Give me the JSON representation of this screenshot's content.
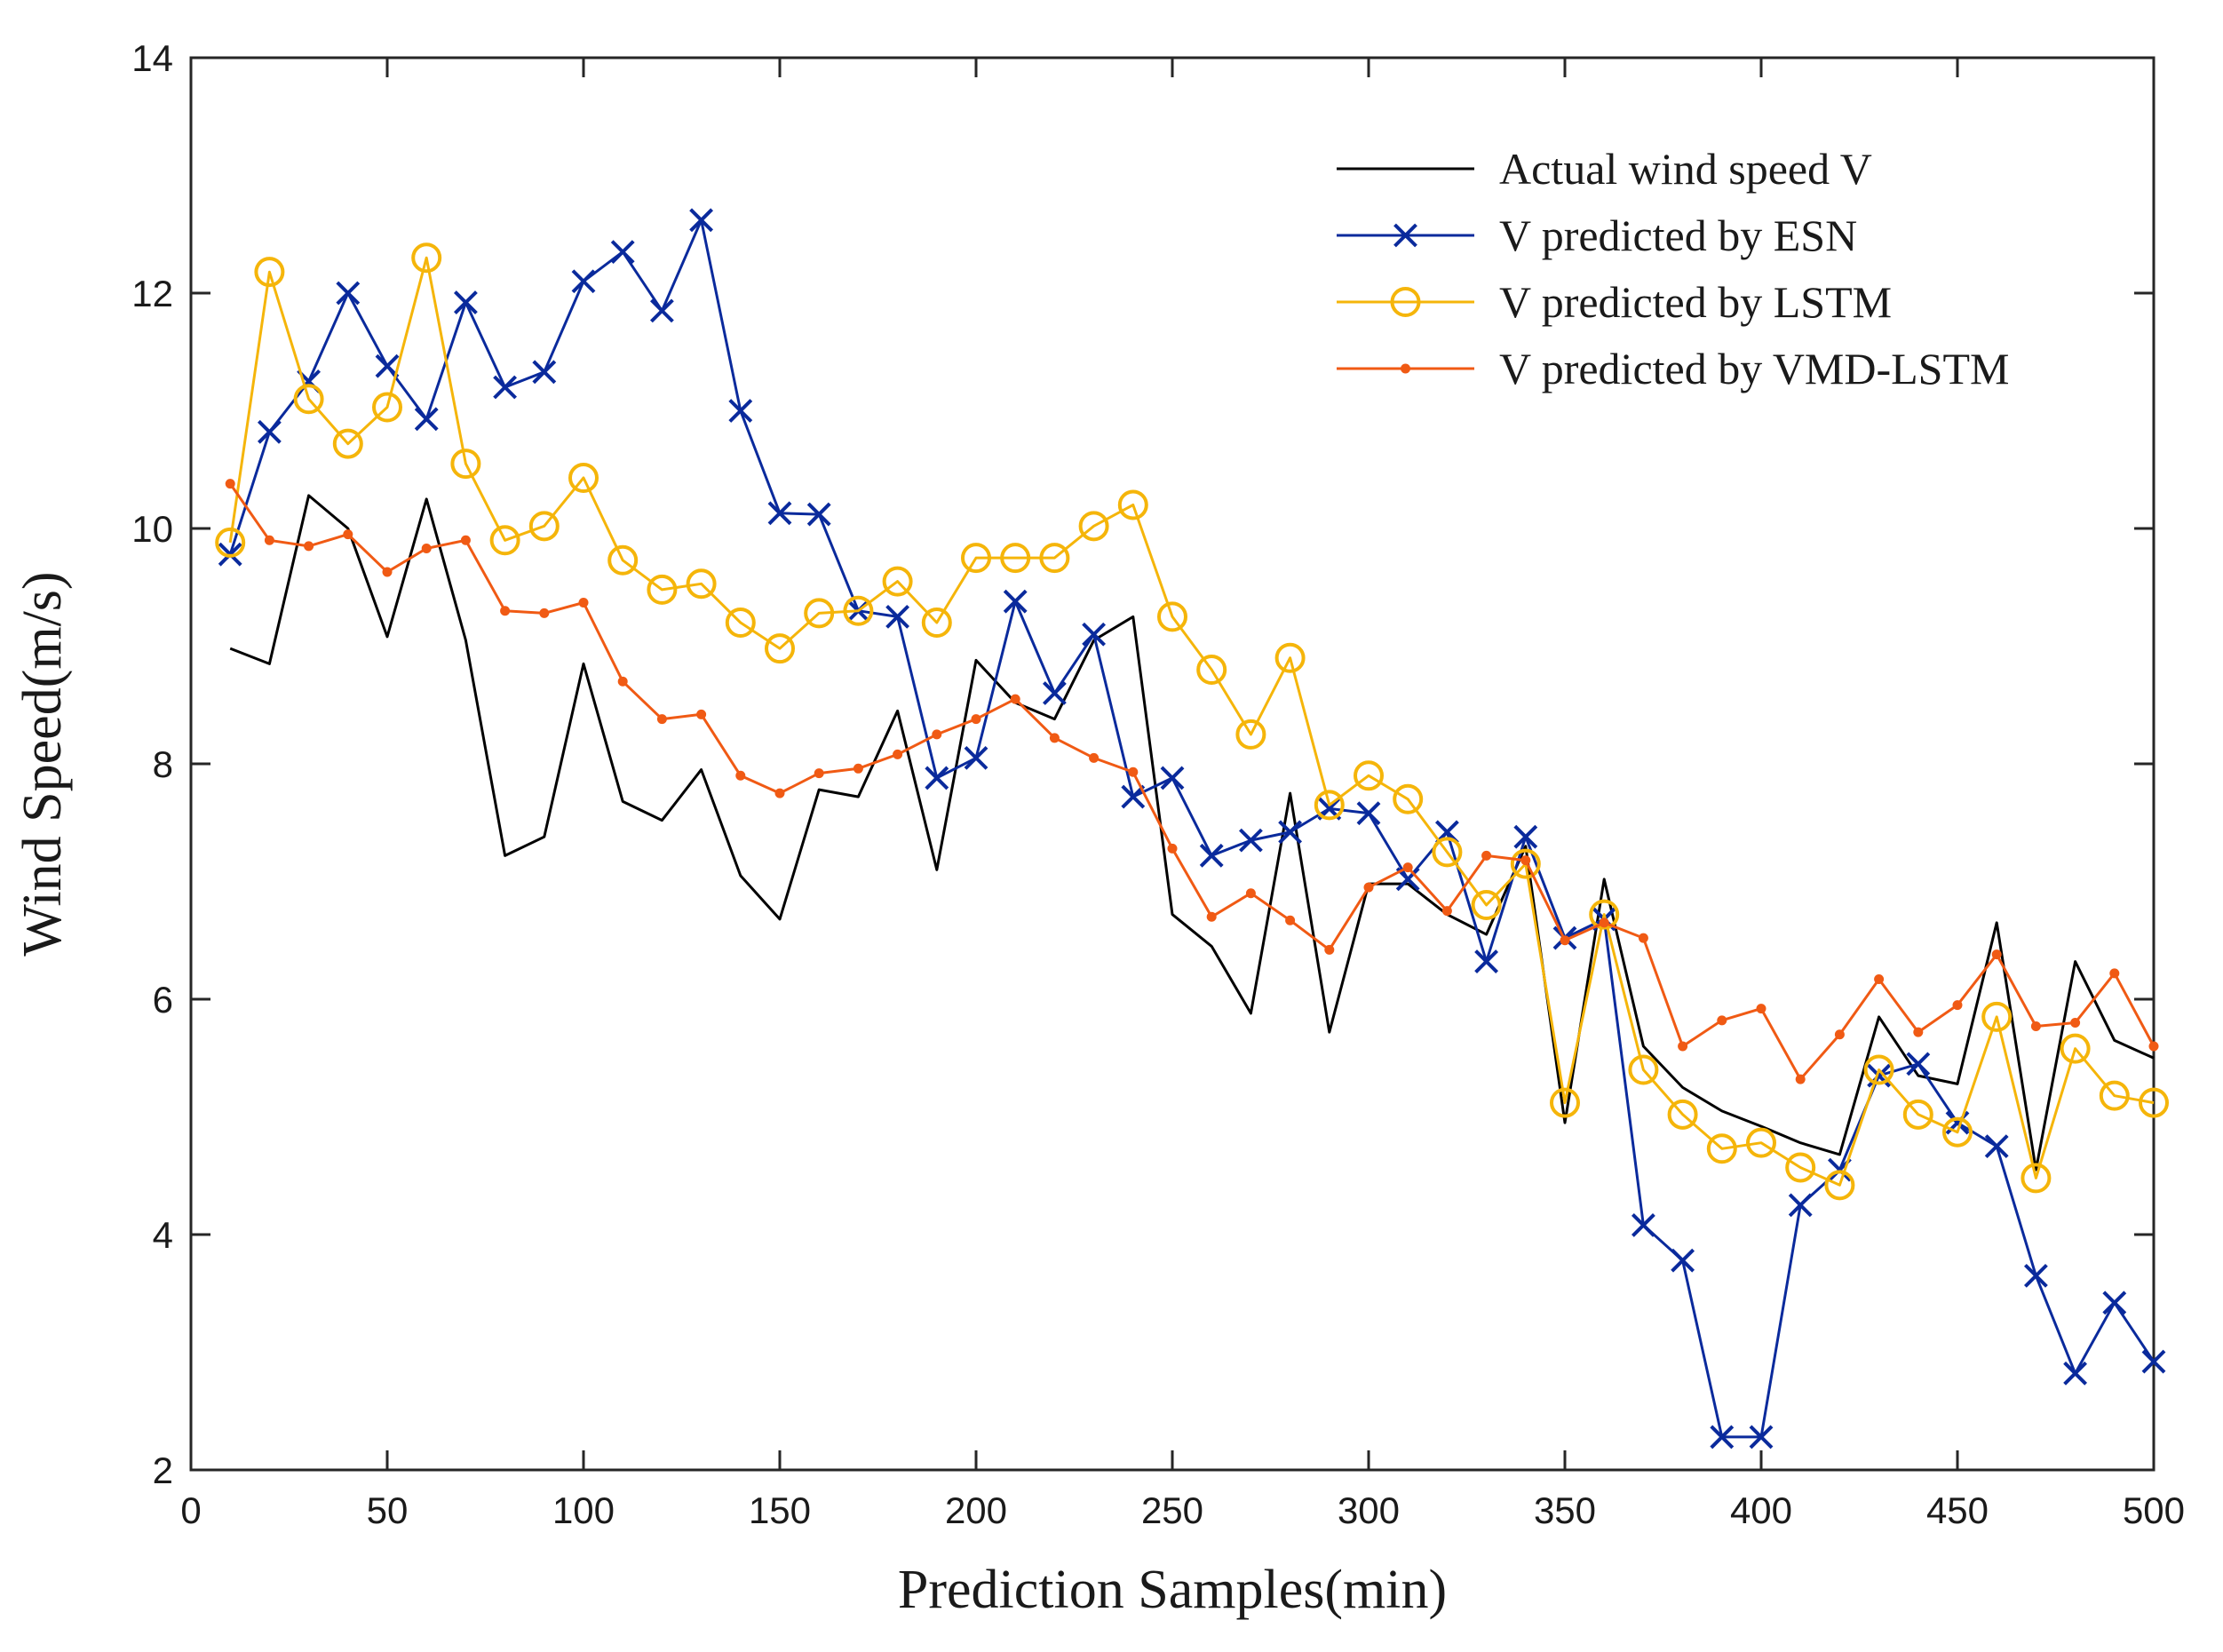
{
  "chart_data": {
    "type": "line",
    "title": "",
    "xlabel": "Prediction Samples(min)",
    "ylabel": "Wind Speed(m/s)",
    "xlim": [
      0,
      500
    ],
    "ylim": [
      2,
      14
    ],
    "xticks": [
      0,
      50,
      100,
      150,
      200,
      250,
      300,
      350,
      400,
      450,
      500
    ],
    "yticks": [
      2,
      4,
      6,
      8,
      10,
      12,
      14
    ],
    "grid": false,
    "legend_position": "top-right",
    "x": [
      10,
      20,
      30,
      40,
      50,
      60,
      70,
      80,
      90,
      100,
      110,
      120,
      130,
      140,
      150,
      160,
      170,
      180,
      190,
      200,
      210,
      220,
      230,
      240,
      250,
      260,
      270,
      280,
      290,
      300,
      310,
      320,
      330,
      340,
      350,
      360,
      370,
      380,
      390,
      400,
      410,
      420,
      430,
      440,
      450,
      460,
      470,
      480,
      490,
      500
    ],
    "series": [
      {
        "name": "Actual wind speed V",
        "color": "#000000",
        "marker": "none",
        "values": [
          8.98,
          8.85,
          10.28,
          10.0,
          9.08,
          10.25,
          9.05,
          7.22,
          7.38,
          8.85,
          7.68,
          7.52,
          7.95,
          7.05,
          6.68,
          7.78,
          7.72,
          8.45,
          7.1,
          8.88,
          8.52,
          8.38,
          9.05,
          9.25,
          6.72,
          6.45,
          5.88,
          7.75,
          5.72,
          6.98,
          6.98,
          6.72,
          6.55,
          7.3,
          4.95,
          7.02,
          5.6,
          5.25,
          5.05,
          4.92,
          4.78,
          4.68,
          5.85,
          5.35,
          5.28,
          6.65,
          4.55,
          6.32,
          5.65,
          5.5
        ]
      },
      {
        "name": "V predicted by ESN",
        "color": "#0a2a9c",
        "marker": "x",
        "values": [
          9.78,
          10.82,
          11.25,
          12.0,
          11.38,
          10.93,
          11.92,
          11.2,
          11.33,
          12.1,
          12.35,
          11.85,
          12.62,
          11.0,
          10.13,
          10.12,
          9.3,
          9.25,
          7.88,
          8.05,
          9.38,
          8.6,
          9.1,
          7.72,
          7.88,
          7.22,
          7.35,
          7.42,
          7.62,
          7.58,
          7.02,
          7.42,
          6.32,
          7.38,
          6.52,
          6.68,
          4.08,
          3.78,
          2.28,
          2.28,
          4.25,
          4.55,
          5.35,
          5.45,
          4.95,
          4.75,
          3.65,
          2.82,
          3.42,
          2.92
        ]
      },
      {
        "name": "V predicted by LSTM",
        "color": "#f5b50a",
        "marker": "o",
        "values": [
          9.88,
          12.18,
          11.1,
          10.72,
          11.03,
          12.3,
          10.55,
          9.9,
          10.02,
          10.43,
          9.73,
          9.48,
          9.53,
          9.2,
          8.98,
          9.28,
          9.3,
          9.55,
          9.2,
          9.75,
          9.75,
          9.75,
          10.02,
          10.2,
          9.25,
          8.8,
          8.25,
          8.9,
          7.65,
          7.9,
          7.7,
          7.25,
          6.8,
          7.15,
          5.12,
          6.72,
          5.4,
          5.02,
          4.73,
          4.78,
          4.57,
          4.42,
          5.4,
          5.02,
          4.87,
          5.85,
          4.48,
          5.58,
          5.18,
          5.12
        ]
      },
      {
        "name": "V predicted by VMD-LSTM",
        "color": "#f05a14",
        "marker": "dot",
        "values": [
          10.38,
          9.9,
          9.85,
          9.95,
          9.63,
          9.83,
          9.9,
          9.3,
          9.28,
          9.37,
          8.7,
          8.38,
          8.42,
          7.9,
          7.75,
          7.92,
          7.96,
          8.08,
          8.25,
          8.38,
          8.55,
          8.22,
          8.05,
          7.93,
          7.28,
          6.7,
          6.9,
          6.67,
          6.42,
          6.95,
          7.12,
          6.75,
          7.22,
          7.18,
          6.5,
          6.65,
          6.52,
          5.6,
          5.82,
          5.92,
          5.32,
          5.7,
          6.17,
          5.72,
          5.95,
          6.38,
          5.77,
          5.8,
          6.22,
          5.6
        ]
      }
    ]
  }
}
